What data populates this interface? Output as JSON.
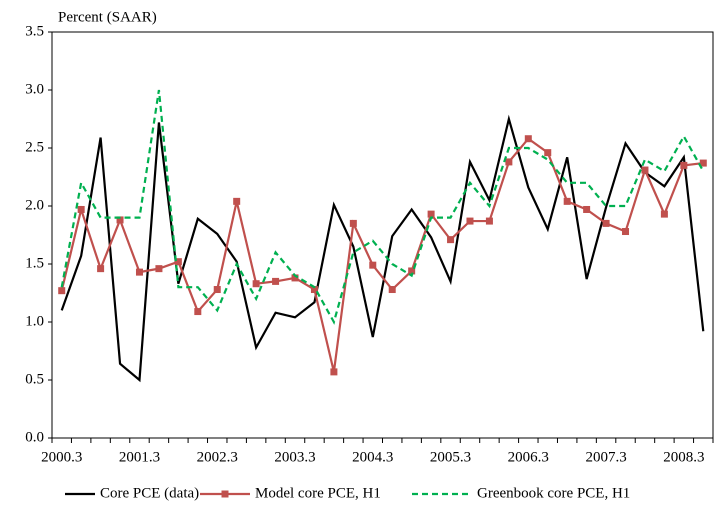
{
  "chart_data": {
    "type": "line",
    "y_label": "Percent (SAAR)",
    "categories": [
      "2000.3",
      null,
      null,
      null,
      "2001.3",
      null,
      null,
      null,
      "2002.3",
      null,
      null,
      null,
      "2003.3",
      null,
      null,
      null,
      "2004.3",
      null,
      null,
      null,
      "2005.3",
      null,
      null,
      null,
      "2006.3",
      null,
      null,
      null,
      "2007.3",
      null,
      null,
      null,
      "2008.3",
      null
    ],
    "series": [
      {
        "name": "Core PCE (data)",
        "color": "#000000",
        "style": "solid",
        "marker": false,
        "values": [
          1.1,
          1.57,
          2.59,
          0.64,
          0.5,
          2.72,
          1.33,
          1.89,
          1.76,
          1.52,
          0.78,
          1.08,
          1.04,
          1.17,
          2.01,
          1.65,
          0.87,
          1.74,
          1.97,
          1.73,
          1.35,
          2.38,
          2.05,
          2.75,
          2.16,
          1.8,
          2.42,
          1.37,
          1.99,
          2.54,
          2.29,
          2.17,
          2.42,
          0.92
        ]
      },
      {
        "name": "Model core PCE, H1",
        "color": "#c0504d",
        "style": "solid",
        "marker": true,
        "values": [
          1.27,
          1.97,
          1.46,
          1.88,
          1.43,
          1.46,
          1.52,
          1.09,
          1.28,
          2.04,
          1.33,
          1.35,
          1.38,
          1.28,
          0.57,
          1.85,
          1.49,
          1.28,
          1.44,
          1.93,
          1.71,
          1.87,
          1.87,
          2.38,
          2.58,
          2.46,
          2.04,
          1.97,
          1.85,
          1.78,
          2.31,
          1.93,
          2.35,
          2.37
        ]
      },
      {
        "name": "Greenbook core PCE, H1",
        "color": "#00b050",
        "style": "dashed",
        "marker": false,
        "values": [
          1.3,
          2.2,
          1.9,
          1.9,
          1.9,
          3.0,
          1.3,
          1.3,
          1.1,
          1.5,
          1.2,
          1.6,
          1.4,
          1.3,
          1.0,
          1.6,
          1.7,
          1.5,
          1.4,
          1.9,
          1.9,
          2.2,
          2.0,
          2.5,
          2.5,
          2.4,
          2.2,
          2.2,
          2.0,
          2.0,
          2.4,
          2.3,
          2.6,
          2.3
        ]
      }
    ],
    "ylim": [
      0,
      3.5
    ],
    "yticks": [
      {
        "value": 0,
        "label": "0.0"
      },
      0.5,
      {
        "value": 1,
        "label": "1.0"
      },
      1.5,
      {
        "value": 2,
        "label": "2.0"
      },
      2.5,
      {
        "value": 3,
        "label": "3.0"
      },
      3.5
    ],
    "grid": false,
    "legend": "bottom"
  }
}
